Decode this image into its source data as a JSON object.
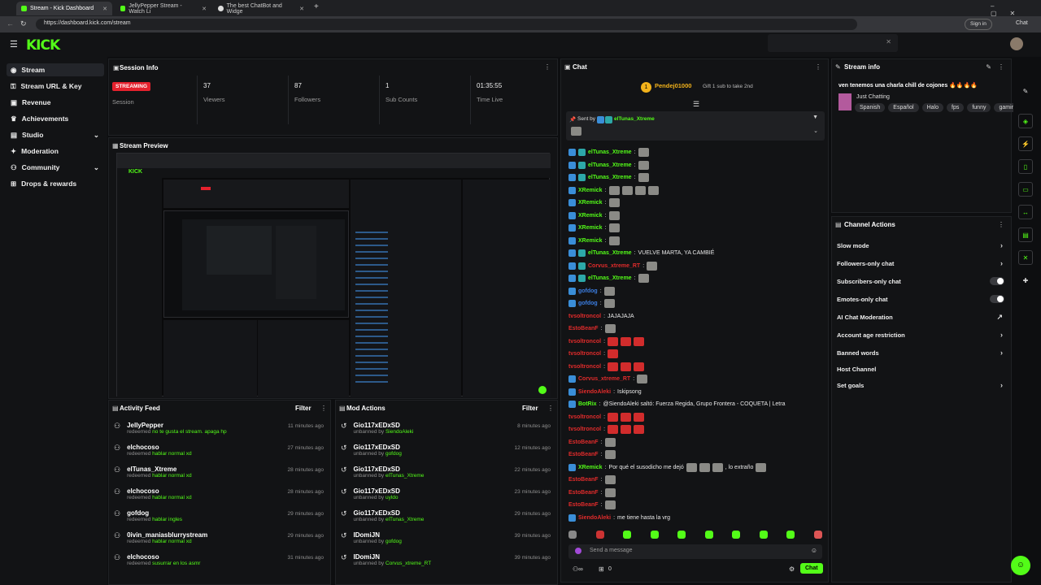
{
  "browser": {
    "tabs": [
      {
        "label": "Stream - Kick Dashboard"
      },
      {
        "label": "JellyPepper Stream - Watch Li"
      },
      {
        "label": "The best ChatBot and Widge"
      }
    ],
    "url": "https://dashboard.kick.com/stream",
    "profile": "Sign in",
    "chat_btn": "Chat"
  },
  "app": {
    "logo": "KICK"
  },
  "sidebar": {
    "items": [
      {
        "label": "Stream",
        "icon": "broadcast-icon"
      },
      {
        "label": "Stream URL & Key",
        "icon": "key-icon"
      },
      {
        "label": "Revenue",
        "icon": "revenue-icon"
      },
      {
        "label": "Achievements",
        "icon": "trophy-icon"
      },
      {
        "label": "Studio",
        "icon": "studio-icon"
      },
      {
        "label": "Moderation",
        "icon": "shield-icon"
      },
      {
        "label": "Community",
        "icon": "community-icon"
      },
      {
        "label": "Drops & rewards",
        "icon": "gift-icon"
      }
    ]
  },
  "session": {
    "title": "Session Info",
    "status": "STREAMING",
    "status_label": "Session",
    "stats": [
      {
        "value": "37",
        "label": "Viewers"
      },
      {
        "value": "87",
        "label": "Followers"
      },
      {
        "value": "1",
        "label": "Sub Counts"
      },
      {
        "value": "01:35:55",
        "label": "Time Live"
      }
    ]
  },
  "preview": {
    "title": "Stream Preview"
  },
  "activity": {
    "title": "Activity Feed",
    "filter": "Filter",
    "rows": [
      {
        "name": "JellyPepper",
        "action": "redeemed",
        "reward": "no te gusta el stream. apaga hp",
        "time": "11 minutes ago"
      },
      {
        "name": "elchocoso",
        "action": "redeemed",
        "reward": "hablar normal xd",
        "time": "27 minutes ago"
      },
      {
        "name": "elTunas_Xtreme",
        "action": "redeemed",
        "reward": "hablar normal xd",
        "time": "28 minutes ago"
      },
      {
        "name": "elchocoso",
        "action": "redeemed",
        "reward": "hablar normal xd",
        "time": "28 minutes ago"
      },
      {
        "name": "gofdog",
        "action": "redeemed",
        "reward": "hablar ingles",
        "time": "29 minutes ago"
      },
      {
        "name": "0ivin_maniasblurrystream",
        "action": "redeemed",
        "reward": "hablar normal xd",
        "time": "29 minutes ago"
      },
      {
        "name": "elchocoso",
        "action": "redeemed",
        "reward": "susurrar en los asmr",
        "time": "31 minutes ago"
      }
    ]
  },
  "mod": {
    "title": "Mod Actions",
    "filter": "Filter",
    "rows": [
      {
        "name": "Gio117xEDxSD",
        "action": "unbanned by",
        "target": "SiendoAleki",
        "time": "8 minutes ago"
      },
      {
        "name": "Gio117xEDxSD",
        "action": "unbanned by",
        "target": "gofdog",
        "time": "12 minutes ago"
      },
      {
        "name": "Gio117xEDxSD",
        "action": "unbanned by",
        "target": "elTunas_Xtreme",
        "time": "22 minutes ago"
      },
      {
        "name": "Gio117xEDxSD",
        "action": "unbanned by",
        "target": "uyldo",
        "time": "23 minutes ago"
      },
      {
        "name": "Gio117xEDxSD",
        "action": "unbanned by",
        "target": "elTunas_Xtreme",
        "time": "29 minutes ago"
      },
      {
        "name": "IDomiJN",
        "action": "unbanned by",
        "target": "gofdog",
        "time": "39 minutes ago"
      },
      {
        "name": "IDomiJN",
        "action": "unbanned by",
        "target": "Corvus_xtreme_RT",
        "time": "39 minutes ago"
      }
    ]
  },
  "chat": {
    "title": "Chat",
    "gifter": "Pendej01000",
    "gift_note": "Gift 1 sub to take 2nd",
    "pinned_label": "Sent by",
    "pinned_user": "elTunas_Xtreme",
    "lines": [
      {
        "user": "elTunas_Xtreme",
        "color": "#53fc18",
        "badges": 2,
        "text": "",
        "emotes": 1,
        "red": false
      },
      {
        "user": "elTunas_Xtreme",
        "color": "#53fc18",
        "badges": 2,
        "text": "",
        "emotes": 1,
        "red": false
      },
      {
        "user": "elTunas_Xtreme",
        "color": "#53fc18",
        "badges": 2,
        "text": "",
        "emotes": 1,
        "red": false
      },
      {
        "user": "XRemick",
        "color": "#53fc18",
        "badges": 1,
        "text": "",
        "emotes": 4,
        "red": false
      },
      {
        "user": "XRemick",
        "color": "#53fc18",
        "badges": 1,
        "text": "",
        "emotes": 1,
        "red": false
      },
      {
        "user": "XRemick",
        "color": "#53fc18",
        "badges": 1,
        "text": "",
        "emotes": 1,
        "red": false
      },
      {
        "user": "XRemick",
        "color": "#53fc18",
        "badges": 1,
        "text": "",
        "emotes": 1,
        "red": false
      },
      {
        "user": "XRemick",
        "color": "#53fc18",
        "badges": 1,
        "text": "",
        "emotes": 1,
        "red": false
      },
      {
        "user": "elTunas_Xtreme",
        "color": "#53fc18",
        "badges": 2,
        "text": "VUELVE MARTA, YA CAMBIÉ",
        "emotes": 0,
        "red": false
      },
      {
        "user": "Corvus_xtreme_RT",
        "color": "#e02b2b",
        "badges": 2,
        "text": "",
        "emotes": 1,
        "red": false
      },
      {
        "user": "elTunas_Xtreme",
        "color": "#53fc18",
        "badges": 2,
        "text": "",
        "emotes": 1,
        "red": false
      },
      {
        "user": "gofdog",
        "color": "#3b7de0",
        "badges": 1,
        "text": "",
        "emotes": 1,
        "red": false
      },
      {
        "user": "gofdog",
        "color": "#3b7de0",
        "badges": 1,
        "text": "",
        "emotes": 1,
        "red": false
      },
      {
        "user": "tvsoltroncol",
        "color": "#e02b2b",
        "badges": 0,
        "text": "JAJAJAJA",
        "emotes": 0,
        "red": false
      },
      {
        "user": "EstoBeanF",
        "color": "#e02b2b",
        "badges": 0,
        "text": "",
        "emotes": 1,
        "red": false
      },
      {
        "user": "tvsoltroncol",
        "color": "#e02b2b",
        "badges": 0,
        "text": "",
        "emotes": 3,
        "red": true
      },
      {
        "user": "tvsoltroncol",
        "color": "#e02b2b",
        "badges": 0,
        "text": "",
        "emotes": 1,
        "red": true
      },
      {
        "user": "tvsoltroncol",
        "color": "#e02b2b",
        "badges": 0,
        "text": "",
        "emotes": 3,
        "red": true
      },
      {
        "user": "Corvus_xtreme_RT",
        "color": "#e02b2b",
        "badges": 1,
        "text": "",
        "emotes": 1,
        "red": false
      },
      {
        "user": "SiendoAleki",
        "color": "#e02b2b",
        "badges": 1,
        "text": "Iskipsong",
        "emotes": 0,
        "red": false
      },
      {
        "user": "BotRix",
        "color": "#53fc18",
        "badges": 1,
        "text": "@SiendoAleki saltó: Fuerza Regida, Grupo Frontera - COQUETA | Letra",
        "emotes": 0,
        "red": false
      },
      {
        "user": "tvsoltroncol",
        "color": "#e02b2b",
        "badges": 0,
        "text": "",
        "emotes": 3,
        "red": true
      },
      {
        "user": "tvsoltroncol",
        "color": "#e02b2b",
        "badges": 0,
        "text": "",
        "emotes": 3,
        "red": true
      },
      {
        "user": "EstoBeanF",
        "color": "#e02b2b",
        "badges": 0,
        "text": "",
        "emotes": 1,
        "red": false
      },
      {
        "user": "EstoBeanF",
        "color": "#e02b2b",
        "badges": 0,
        "text": "",
        "emotes": 1,
        "red": false
      },
      {
        "user": "XRemick",
        "color": "#53fc18",
        "badges": 1,
        "text": "Por qué el susodicho me dejó",
        "emotes": 3,
        "red": false,
        "after": ", lo extraño"
      },
      {
        "user": "EstoBeanF",
        "color": "#e02b2b",
        "badges": 0,
        "text": "",
        "emotes": 1,
        "red": false
      },
      {
        "user": "EstoBeanF",
        "color": "#e02b2b",
        "badges": 0,
        "text": "",
        "emotes": 1,
        "red": false
      },
      {
        "user": "EstoBeanF",
        "color": "#e02b2b",
        "badges": 0,
        "text": "",
        "emotes": 1,
        "red": false
      },
      {
        "user": "SiendoAleki",
        "color": "#e02b2b",
        "badges": 1,
        "text": "me tiene hasta la vrg",
        "emotes": 0,
        "red": false
      }
    ],
    "placeholder": "Send a message",
    "viewer_count": "0",
    "send": "Chat"
  },
  "stream_info": {
    "title": "Stream info",
    "stream_title": "ven tenemos una charla chill de cojones 🔥🔥🔥🔥",
    "category": "Just Chatting",
    "tags": [
      "Spanish",
      "Español",
      "Halo",
      "fps",
      "funny",
      "gaming"
    ]
  },
  "channel_actions": {
    "title": "Channel Actions",
    "items": [
      {
        "label": "Slow mode",
        "type": "chevron"
      },
      {
        "label": "Followers-only chat",
        "type": "chevron"
      },
      {
        "label": "Subscribers-only chat",
        "type": "toggle"
      },
      {
        "label": "Emotes-only chat",
        "type": "toggle"
      },
      {
        "label": "AI Chat Moderation",
        "type": "link"
      },
      {
        "label": "Account age restriction",
        "type": "chevron"
      },
      {
        "label": "Banned words",
        "type": "chevron"
      },
      {
        "label": "Host Channel",
        "type": "none"
      },
      {
        "label": "Set goals",
        "type": "chevron"
      }
    ]
  }
}
